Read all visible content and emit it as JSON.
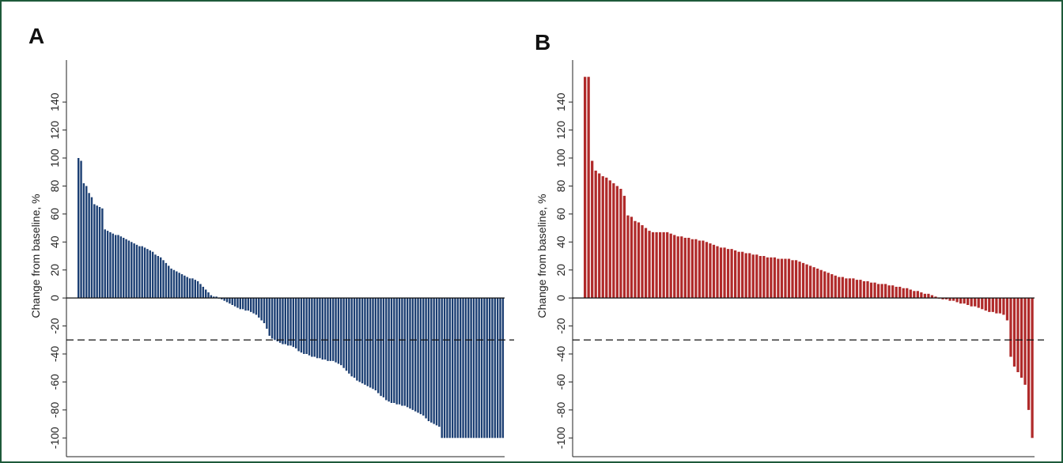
{
  "figure": {
    "border_color": "#1e5a3a"
  },
  "chart_data": [
    {
      "panel": "A",
      "type": "bar",
      "ylabel": "Change from baseline, %",
      "ylim": [
        -110,
        170
      ],
      "yticks": [
        -100,
        -80,
        -60,
        -40,
        -20,
        0,
        20,
        40,
        60,
        80,
        100,
        120,
        140
      ],
      "reference_line": -30,
      "bar_color": "#1c3f73",
      "values": [
        100,
        98,
        82,
        80,
        75,
        72,
        67,
        66,
        65,
        64,
        49,
        48,
        47,
        46,
        45,
        45,
        44,
        43,
        42,
        41,
        40,
        39,
        38,
        37,
        37,
        36,
        35,
        34,
        33,
        31,
        30,
        29,
        27,
        25,
        23,
        21,
        20,
        19,
        18,
        17,
        16,
        15,
        14,
        14,
        13,
        12,
        10,
        8,
        6,
        4,
        2,
        1,
        1,
        0,
        -1,
        -2,
        -3,
        -4,
        -5,
        -6,
        -7,
        -8,
        -8,
        -9,
        -9,
        -10,
        -11,
        -12,
        -14,
        -16,
        -18,
        -22,
        -27,
        -29,
        -30,
        -31,
        -32,
        -33,
        -33,
        -34,
        -34,
        -35,
        -36,
        -38,
        -39,
        -40,
        -40,
        -41,
        -42,
        -42,
        -43,
        -43,
        -44,
        -44,
        -45,
        -45,
        -45,
        -46,
        -47,
        -48,
        -50,
        -52,
        -54,
        -56,
        -57,
        -59,
        -60,
        -61,
        -62,
        -63,
        -64,
        -65,
        -66,
        -68,
        -70,
        -71,
        -73,
        -74,
        -75,
        -75,
        -76,
        -76,
        -77,
        -77,
        -78,
        -79,
        -80,
        -81,
        -82,
        -83,
        -84,
        -86,
        -88,
        -89,
        -90,
        -91,
        -92,
        -100,
        -100,
        -100,
        -100,
        -100,
        -100,
        -100,
        -100,
        -100,
        -100,
        -100,
        -100,
        -100,
        -100,
        -100,
        -100,
        -100,
        -100,
        -100,
        -100,
        -100,
        -100,
        -100,
        -100
      ]
    },
    {
      "panel": "B",
      "type": "bar",
      "ylabel": "Change from baseline, %",
      "ylim": [
        -110,
        170
      ],
      "yticks": [
        -100,
        -80,
        -60,
        -40,
        -20,
        0,
        20,
        40,
        60,
        80,
        100,
        120,
        140
      ],
      "reference_line": -30,
      "bar_color": "#b02a2a",
      "values": [
        158,
        158,
        98,
        91,
        89,
        87,
        86,
        84,
        82,
        80,
        78,
        73,
        59,
        58,
        55,
        54,
        52,
        50,
        48,
        47,
        47,
        47,
        47,
        47,
        46,
        45,
        44,
        44,
        43,
        43,
        42,
        42,
        41,
        41,
        40,
        39,
        38,
        37,
        36,
        36,
        35,
        35,
        34,
        33,
        33,
        32,
        32,
        31,
        31,
        30,
        30,
        29,
        29,
        29,
        28,
        28,
        28,
        28,
        27,
        27,
        26,
        25,
        24,
        23,
        22,
        21,
        20,
        19,
        18,
        17,
        16,
        15,
        15,
        14,
        14,
        14,
        13,
        13,
        12,
        12,
        11,
        11,
        10,
        10,
        10,
        9,
        9,
        8,
        8,
        7,
        7,
        6,
        5,
        5,
        4,
        3,
        3,
        2,
        1,
        0,
        -1,
        -1,
        -2,
        -2,
        -3,
        -4,
        -4,
        -5,
        -6,
        -6,
        -7,
        -8,
        -9,
        -10,
        -10,
        -11,
        -11,
        -12,
        -16,
        -42,
        -49,
        -53,
        -57,
        -62,
        -80,
        -100
      ]
    }
  ]
}
